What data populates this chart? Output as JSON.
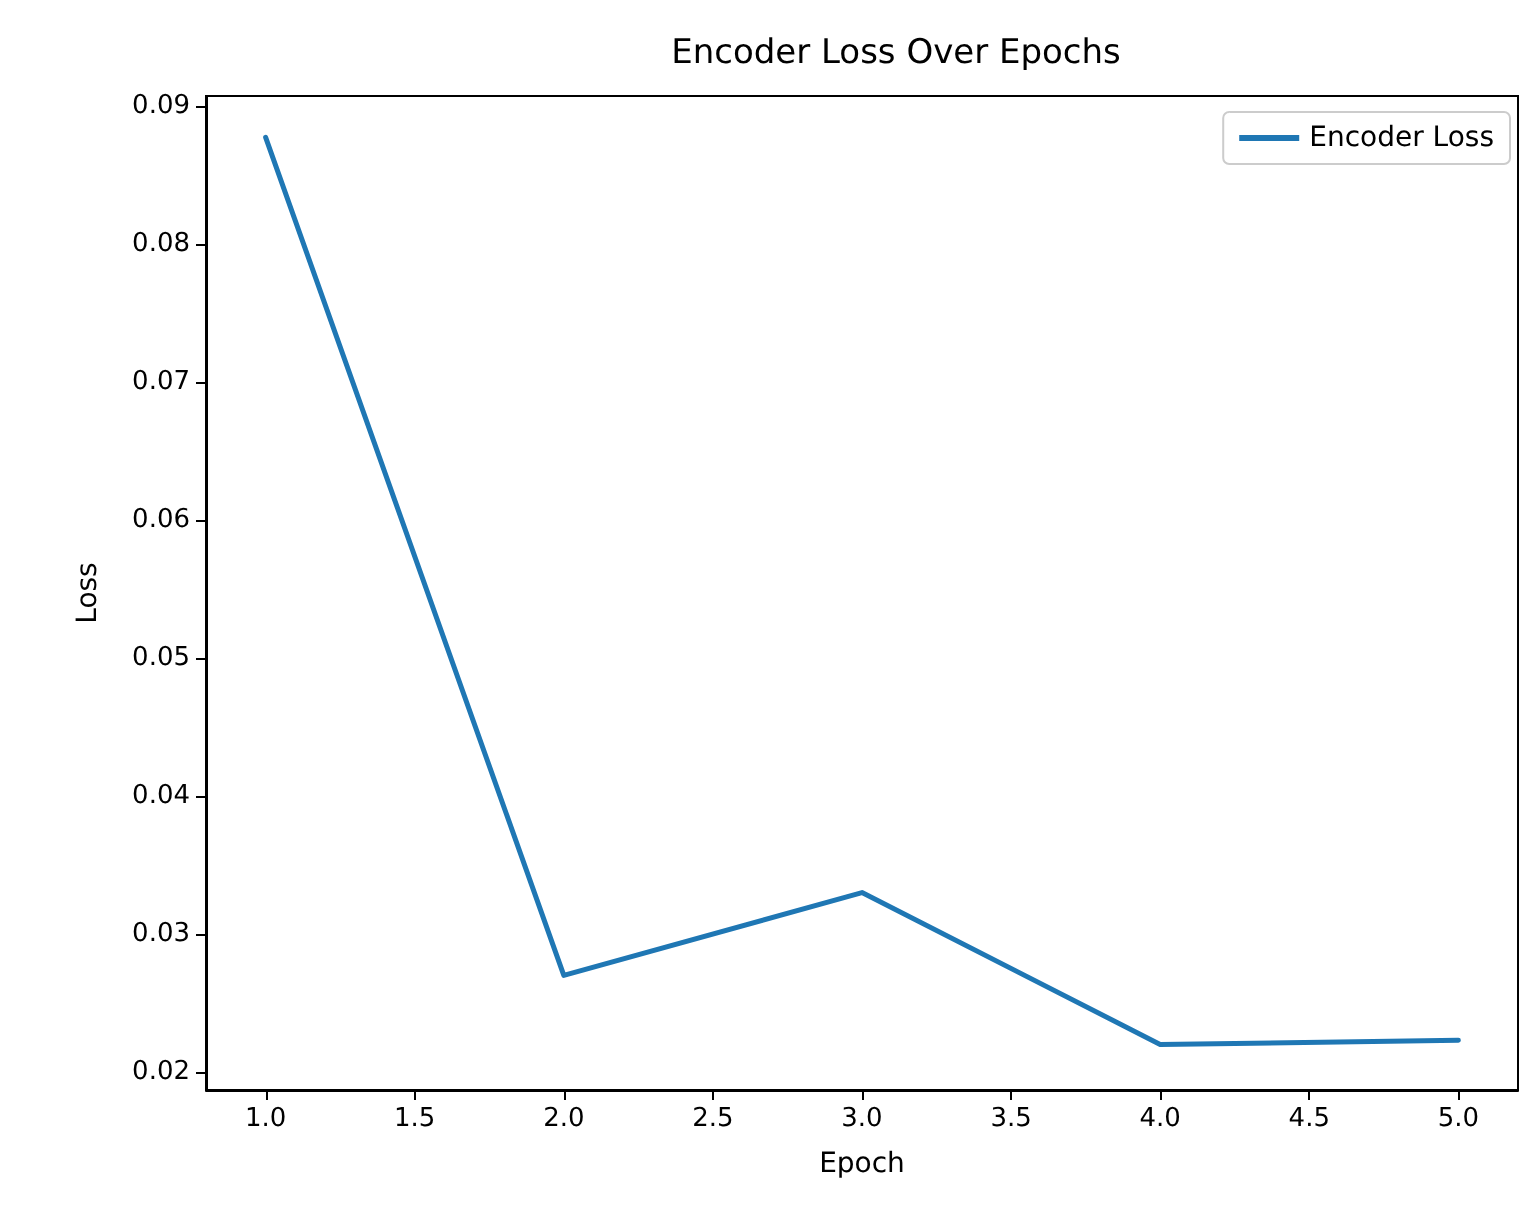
{
  "chart_data": {
    "type": "line",
    "title": "Encoder Loss Over Epochs",
    "xlabel": "Epoch",
    "ylabel": "Loss",
    "x": [
      1,
      2,
      3,
      4,
      5
    ],
    "series": [
      {
        "name": "Encoder Loss",
        "color": "#1f77b4",
        "values": [
          0.0877,
          0.027,
          0.033,
          0.022,
          0.0223
        ]
      }
    ],
    "xlim": [
      0.8,
      5.2
    ],
    "ylim": [
      0.0187,
      0.0907
    ],
    "xticks": [
      {
        "value": 1,
        "label": "1.0"
      },
      1.5,
      {
        "value": 2,
        "label": "2.0"
      },
      2.5,
      {
        "value": 3,
        "label": "3.0"
      },
      3.5,
      {
        "value": 4,
        "label": "4.0"
      },
      4.5,
      {
        "value": 5,
        "label": "5.0"
      }
    ],
    "yticks": [
      0.02,
      0.03,
      0.04,
      0.05,
      0.06,
      0.07,
      0.08,
      0.09
    ],
    "legend": "top right",
    "grid": false,
    "marker": "none",
    "line_style": "solid"
  }
}
